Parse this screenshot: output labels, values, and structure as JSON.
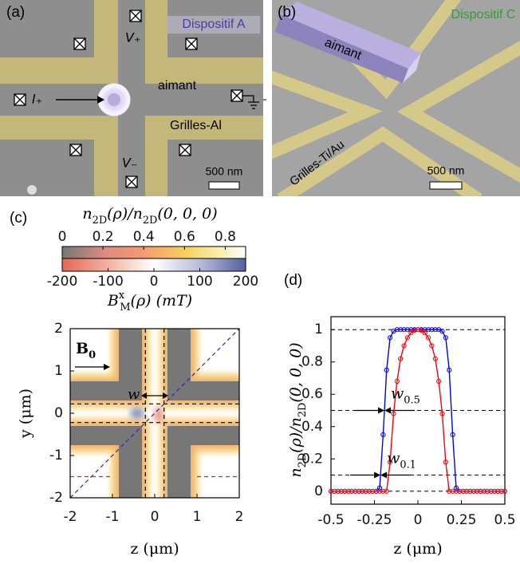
{
  "panel_a": {
    "label": "(a)",
    "title": "Dispositif A",
    "v_plus": "V₊",
    "magnet": "aimant",
    "current": "I₊",
    "gates": "Grilles-Al",
    "v_minus": "V₋",
    "scale": "500 nm"
  },
  "panel_b": {
    "label": "(b)",
    "title": "Dispositif C",
    "magnet": "aimant",
    "gates": "Grilles-Ti/Au",
    "scale": "500 nm"
  },
  "panel_c": {
    "label": "(c)",
    "colorbar_density": {
      "title": [
        "n",
        {
          "sub": "2D"
        },
        "(ρ)/n",
        {
          "sub": "2D"
        },
        "(0, 0, 0)"
      ],
      "lim": [
        0,
        0.9
      ],
      "ticks": [
        0,
        0.2,
        0.4,
        0.6,
        0.8
      ]
    },
    "colorbar_field": {
      "title": [
        "B",
        {
          "sup": "x"
        },
        {
          "sub": "M"
        },
        "(ρ) (mT)"
      ],
      "lim": [
        -200,
        200
      ],
      "ticks": [
        -200,
        -100,
        0,
        100,
        200
      ]
    },
    "map": {
      "xlabel": "z (μm)",
      "ylabel": "y (μm)",
      "xlim": [
        -2,
        2
      ],
      "xticks": [
        -2,
        -1,
        0,
        1,
        2
      ],
      "ylim": [
        -2,
        2
      ],
      "yticks": [
        -2,
        -1,
        0,
        1,
        2
      ],
      "field_label": [
        "B",
        {
          "sub": "0"
        }
      ],
      "width_label": "w"
    }
  },
  "chart_data": {
    "type": "line",
    "panel_label": "(d)",
    "xlabel": "z (μm)",
    "ylabel": [
      "n",
      {
        "sub": "2D"
      },
      "(ρ)/n",
      {
        "sub": "2D"
      },
      "(0, 0, 0)"
    ],
    "x": [
      -0.5,
      -0.48,
      -0.46,
      -0.44,
      -0.42,
      -0.4,
      -0.38,
      -0.36,
      -0.34,
      -0.32,
      -0.3,
      -0.28,
      -0.26,
      -0.24,
      -0.22,
      -0.2,
      -0.18,
      -0.16,
      -0.14,
      -0.12,
      -0.1,
      -0.08,
      -0.06,
      -0.04,
      -0.02,
      0,
      0.02,
      0.04,
      0.06,
      0.08,
      0.1,
      0.12,
      0.14,
      0.16,
      0.18,
      0.2,
      0.22,
      0.24,
      0.26,
      0.28,
      0.3,
      0.32,
      0.34,
      0.36,
      0.38,
      0.4,
      0.42,
      0.44,
      0.46,
      0.48,
      0.5
    ],
    "series": [
      {
        "color": "#0000ff",
        "values": [
          0,
          0,
          0,
          0,
          0,
          0,
          0,
          0,
          0,
          0,
          0,
          0,
          0,
          0,
          0.02,
          0.35,
          0.75,
          0.95,
          0.99,
          1,
          1,
          1,
          1,
          1,
          1,
          1,
          1,
          1,
          1,
          1,
          1,
          1,
          0.99,
          0.95,
          0.75,
          0.35,
          0.02,
          0,
          0,
          0,
          0,
          0,
          0,
          0,
          0,
          0,
          0,
          0,
          0,
          0,
          0
        ]
      },
      {
        "color": "#ff0000",
        "values": [
          0,
          0,
          0,
          0,
          0,
          0,
          0,
          0,
          0,
          0,
          0,
          0,
          0,
          0,
          0,
          0,
          0,
          0.18,
          0.48,
          0.68,
          0.82,
          0.9,
          0.95,
          0.98,
          0.995,
          1,
          0.995,
          0.98,
          0.95,
          0.9,
          0.82,
          0.68,
          0.48,
          0.18,
          0,
          0,
          0,
          0,
          0,
          0,
          0,
          0,
          0,
          0,
          0,
          0,
          0,
          0,
          0,
          0,
          0
        ]
      }
    ],
    "xlim": [
      -0.5,
      0.5
    ],
    "xticks": [
      -0.5,
      -0.25,
      0,
      0.25,
      0.5
    ],
    "ylim": [
      -0.08,
      1.08
    ],
    "yticks": [
      0,
      0.2,
      0.4,
      0.6,
      0.8,
      1
    ],
    "reference_lines": [
      0,
      0.1,
      0.5,
      1
    ],
    "width_labels": [
      {
        "level": 0.5,
        "text": [
          "w",
          {
            "sub": "0.5"
          }
        ]
      },
      {
        "level": 0.1,
        "text": [
          "w",
          {
            "sub": "0.1"
          }
        ]
      }
    ]
  }
}
